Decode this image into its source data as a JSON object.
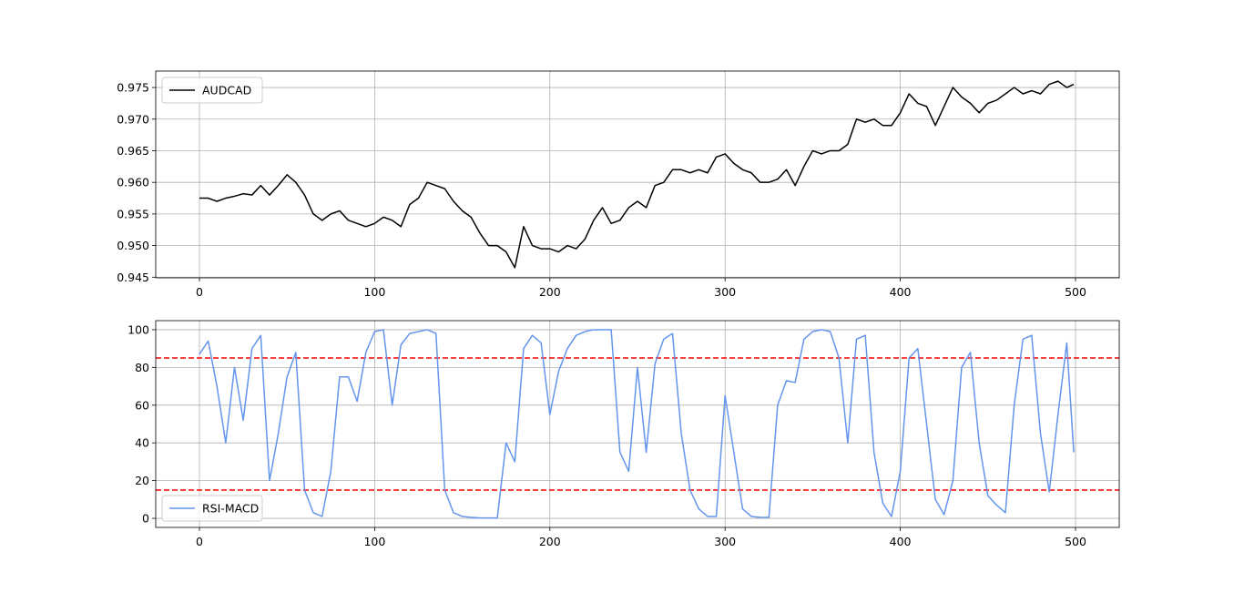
{
  "chart_data": [
    {
      "type": "line",
      "x": [
        0,
        5,
        10,
        15,
        20,
        25,
        30,
        35,
        40,
        45,
        50,
        55,
        60,
        65,
        70,
        75,
        80,
        85,
        90,
        95,
        100,
        105,
        110,
        115,
        120,
        125,
        130,
        135,
        140,
        145,
        150,
        155,
        160,
        165,
        170,
        175,
        180,
        185,
        190,
        195,
        200,
        205,
        210,
        215,
        220,
        225,
        230,
        235,
        240,
        245,
        250,
        255,
        260,
        265,
        270,
        275,
        280,
        285,
        290,
        295,
        300,
        305,
        310,
        315,
        320,
        325,
        330,
        335,
        340,
        345,
        350,
        355,
        360,
        365,
        370,
        375,
        380,
        385,
        390,
        395,
        400,
        405,
        410,
        415,
        420,
        425,
        430,
        435,
        440,
        445,
        450,
        455,
        460,
        465,
        470,
        475,
        480,
        485,
        490,
        495,
        499
      ],
      "series": [
        {
          "name": "AUDCAD",
          "color": "#000000",
          "values": [
            0.9575,
            0.9575,
            0.957,
            0.9575,
            0.9578,
            0.9582,
            0.958,
            0.9595,
            0.958,
            0.9595,
            0.9612,
            0.96,
            0.958,
            0.955,
            0.954,
            0.955,
            0.9555,
            0.954,
            0.9535,
            0.953,
            0.9535,
            0.9545,
            0.954,
            0.953,
            0.9565,
            0.9575,
            0.96,
            0.9595,
            0.959,
            0.957,
            0.9555,
            0.9545,
            0.952,
            0.95,
            0.95,
            0.949,
            0.9465,
            0.953,
            0.95,
            0.9495,
            0.9495,
            0.949,
            0.95,
            0.9495,
            0.951,
            0.954,
            0.956,
            0.9535,
            0.954,
            0.956,
            0.957,
            0.956,
            0.9595,
            0.96,
            0.962,
            0.962,
            0.9615,
            0.962,
            0.9615,
            0.964,
            0.9645,
            0.963,
            0.962,
            0.9615,
            0.96,
            0.96,
            0.9605,
            0.962,
            0.9595,
            0.9625,
            0.965,
            0.9645,
            0.965,
            0.965,
            0.966,
            0.97,
            0.9695,
            0.97,
            0.969,
            0.969,
            0.971,
            0.974,
            0.9725,
            0.972,
            0.969,
            0.972,
            0.975,
            0.9735,
            0.9725,
            0.971,
            0.9725,
            0.973,
            0.974,
            0.975,
            0.974,
            0.9745,
            0.974,
            0.9755,
            0.976,
            0.975,
            0.9755
          ]
        }
      ],
      "xlim": [
        -24.95,
        524.95
      ],
      "xticks": [
        0,
        100,
        200,
        300,
        400,
        500
      ],
      "ylim": [
        0.9449,
        0.9776
      ],
      "yticks": [
        0.945,
        {
          "value": 0.95,
          "label": "0.950"
        },
        0.955,
        {
          "value": 0.96,
          "label": "0.960"
        },
        0.965,
        {
          "value": 0.97,
          "label": "0.970"
        },
        0.975
      ],
      "grid": true,
      "legend": "upper left"
    },
    {
      "type": "line",
      "x": [
        0,
        5,
        10,
        15,
        20,
        25,
        30,
        35,
        40,
        45,
        50,
        55,
        60,
        65,
        70,
        75,
        80,
        85,
        90,
        95,
        100,
        105,
        110,
        115,
        120,
        125,
        130,
        135,
        140,
        145,
        150,
        155,
        160,
        165,
        170,
        175,
        180,
        185,
        190,
        195,
        200,
        205,
        210,
        215,
        220,
        225,
        230,
        235,
        240,
        245,
        250,
        255,
        260,
        265,
        270,
        275,
        280,
        285,
        290,
        295,
        300,
        305,
        310,
        315,
        320,
        325,
        330,
        335,
        340,
        345,
        350,
        355,
        360,
        365,
        370,
        375,
        380,
        385,
        390,
        395,
        400,
        405,
        410,
        415,
        420,
        425,
        430,
        435,
        440,
        445,
        450,
        455,
        460,
        465,
        470,
        475,
        480,
        485,
        490,
        495,
        499
      ],
      "series": [
        {
          "name": "RSI-MACD",
          "color": "#6495ed",
          "values": [
            87,
            94,
            70,
            40,
            80,
            52,
            90,
            97,
            20,
            45,
            75,
            88,
            15,
            3,
            1,
            25,
            75,
            75,
            62,
            88,
            99,
            100,
            60,
            92,
            98,
            99,
            100,
            98,
            15,
            3,
            1,
            0.5,
            0.3,
            0.2,
            0.2,
            40,
            30,
            90,
            97,
            93,
            55,
            78,
            90,
            97,
            99,
            100,
            100,
            100,
            35,
            25,
            80,
            35,
            82,
            95,
            98,
            45,
            15,
            5,
            1,
            1,
            65,
            35,
            5,
            1,
            0.5,
            0.5,
            60,
            73,
            72,
            95,
            99,
            100,
            99,
            85,
            40,
            95,
            97,
            35,
            8,
            1,
            25,
            85,
            90,
            50,
            10,
            2,
            20,
            80,
            88,
            40,
            12,
            7,
            3,
            60,
            95,
            97,
            45,
            14,
            55,
            93,
            35
          ]
        }
      ],
      "hlines": [
        85,
        15
      ],
      "hline_color": "#ff0000",
      "xlim": [
        -24.95,
        524.95
      ],
      "xticks": [
        0,
        100,
        200,
        300,
        400,
        500
      ],
      "ylim": [
        -4.8,
        104.8
      ],
      "yticks": [
        0,
        20,
        40,
        60,
        80,
        100
      ],
      "grid": true,
      "legend": "lower left"
    }
  ]
}
